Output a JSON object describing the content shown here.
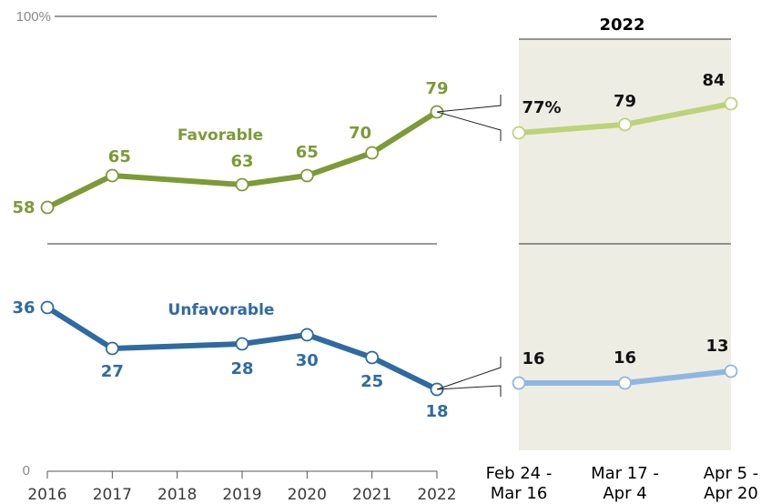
{
  "chart_data": [
    {
      "type": "line",
      "x": [
        "2016",
        "2017",
        "2018",
        "2019",
        "2020",
        "2021",
        "2022"
      ],
      "ylim": [
        0,
        100
      ],
      "yticks": [
        "0",
        "100%"
      ],
      "series": [
        {
          "name": "Favorable",
          "color": "#7d9a36",
          "points": [
            {
              "x": "2016",
              "y": 58,
              "label": "58"
            },
            {
              "x": "2017",
              "y": 65,
              "label": "65"
            },
            {
              "x": "2019",
              "y": 63,
              "label": "63"
            },
            {
              "x": "2020",
              "y": 65,
              "label": "65"
            },
            {
              "x": "2021",
              "y": 70,
              "label": "70"
            },
            {
              "x": "2022",
              "y": 79,
              "label": "79"
            }
          ]
        },
        {
          "name": "Unfavorable",
          "color": "#2f6aa2",
          "points": [
            {
              "x": "2016",
              "y": 36,
              "label": "36"
            },
            {
              "x": "2017",
              "y": 27,
              "label": "27"
            },
            {
              "x": "2019",
              "y": 28,
              "label": "28"
            },
            {
              "x": "2020",
              "y": 30,
              "label": "30"
            },
            {
              "x": "2021",
              "y": 25,
              "label": "25"
            },
            {
              "x": "2022",
              "y": 18,
              "label": "18"
            }
          ]
        }
      ]
    },
    {
      "type": "line",
      "title": "2022",
      "x": [
        [
          "Feb 24 -",
          "Mar 16"
        ],
        [
          "Mar 17 -",
          "Apr 4"
        ],
        [
          "Apr 5 -",
          "Apr 20"
        ]
      ],
      "ylim": [
        0,
        100
      ],
      "background": "#eeede3",
      "series": [
        {
          "name": "Favorable",
          "color": "#bcd37a",
          "values": [
            77,
            79,
            84
          ],
          "labels": [
            "77%",
            "79",
            "84"
          ]
        },
        {
          "name": "Unfavorable",
          "color": "#8fb6e3",
          "values": [
            16,
            16,
            13
          ],
          "labels": [
            "16",
            "16",
            "13"
          ]
        }
      ]
    }
  ]
}
